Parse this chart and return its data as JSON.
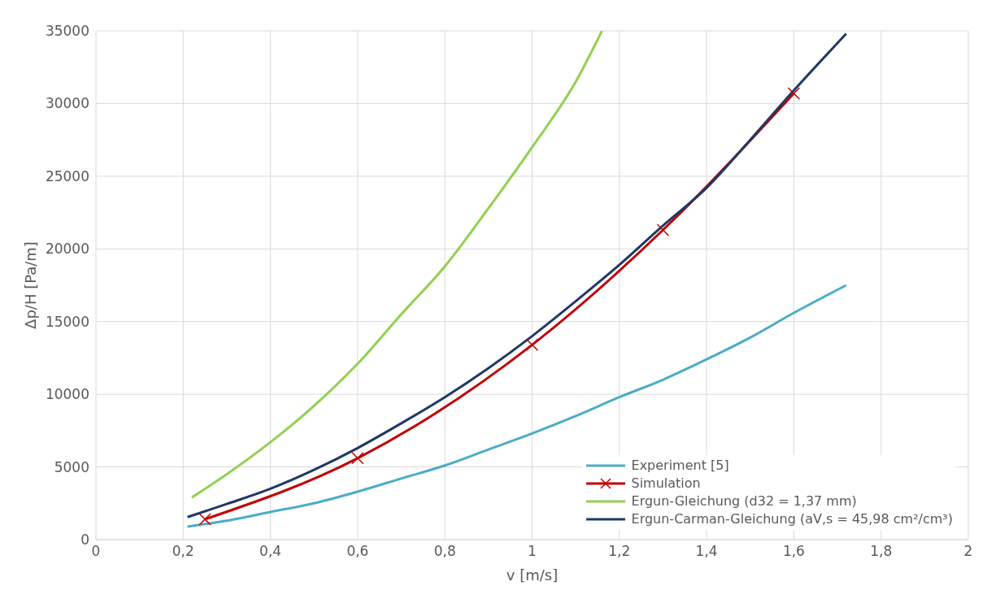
{
  "chart_data": {
    "type": "line",
    "xlabel": "v [m/s]",
    "ylabel": "Δp/H [Pa/m]",
    "xlim": [
      0,
      2
    ],
    "xticks": [
      0,
      {
        "value": 0.2,
        "label": "0,2"
      },
      {
        "value": 0.4,
        "label": "0,4"
      },
      {
        "value": 0.6,
        "label": "0,6"
      },
      {
        "value": 0.8,
        "label": "0,8"
      },
      1,
      {
        "value": 1.2,
        "label": "1,2"
      },
      {
        "value": 1.4,
        "label": "1,4"
      },
      {
        "value": 1.6,
        "label": "1,6"
      },
      {
        "value": 1.8,
        "label": "1,8"
      },
      2
    ],
    "ylim": [
      0,
      35000
    ],
    "yticks": [
      0,
      5000,
      10000,
      15000,
      20000,
      25000,
      30000,
      35000
    ],
    "grid": true,
    "legend": "bottom right",
    "line_style": "solid",
    "series": [
      {
        "name": "Experiment [5]",
        "color": "#4bacc6",
        "marker": "none",
        "x": [
          0.21,
          0.3,
          0.4,
          0.5,
          0.6,
          0.7,
          0.8,
          0.9,
          1.0,
          1.1,
          1.2,
          1.3,
          1.4,
          1.5,
          1.6,
          1.72
        ],
        "values": [
          900,
          1300,
          1900,
          2500,
          3300,
          4200,
          5100,
          6200,
          7300,
          8500,
          9800,
          11000,
          12400,
          13900,
          15600,
          17500
        ]
      },
      {
        "name": "Simulation",
        "color": "#c00000",
        "marker": "cross",
        "x": [
          0.25,
          0.6,
          1.0,
          1.3,
          1.6
        ],
        "values": [
          1400,
          5600,
          13400,
          21300,
          30700
        ]
      },
      {
        "name": "Ergun-Gleichung (d32 = 1,37 mm)",
        "color": "#92d050",
        "marker": "none",
        "x": [
          0.22,
          0.3,
          0.4,
          0.5,
          0.6,
          0.7,
          0.8,
          0.9,
          1.0,
          1.1,
          1.16
        ],
        "values": [
          2900,
          4500,
          6700,
          9200,
          12100,
          15500,
          18800,
          22800,
          27000,
          31500,
          35000
        ]
      },
      {
        "name": "Ergun-Carman-Gleichung (aV,s = 45,98 cm²/cm³)",
        "color": "#203864",
        "marker": "none",
        "x": [
          0.21,
          0.3,
          0.4,
          0.5,
          0.6,
          0.7,
          0.8,
          0.9,
          1.0,
          1.1,
          1.2,
          1.3,
          1.4,
          1.5,
          1.6,
          1.72
        ],
        "values": [
          1550,
          2450,
          3500,
          4800,
          6300,
          8000,
          9800,
          11800,
          14000,
          16400,
          18900,
          21600,
          24200,
          27500,
          30900,
          34800
        ]
      }
    ]
  }
}
